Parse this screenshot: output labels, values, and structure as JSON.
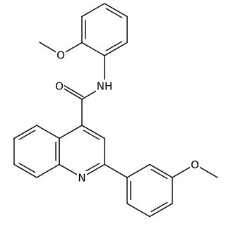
{
  "atoms": [
    {
      "label": "O"
    },
    {
      "label": "NH"
    },
    {
      "label": "O"
    },
    {
      "label": "N"
    },
    {
      "label": "O"
    }
  ]
}
